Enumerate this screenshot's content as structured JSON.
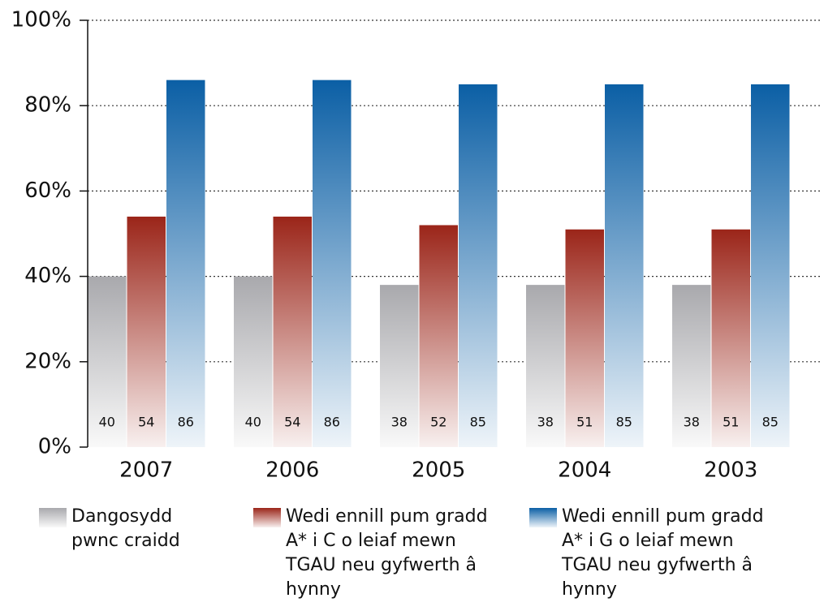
{
  "chart_data": {
    "type": "bar",
    "categories": [
      "2007",
      "2006",
      "2005",
      "2004",
      "2003"
    ],
    "series": [
      {
        "name": "Dangosydd pwnc craidd",
        "color": "#a9a9ad",
        "values": [
          40,
          40,
          38,
          38,
          38
        ]
      },
      {
        "name": "Wedi ennill pum gradd  A* i C o leiaf mewn TGAU neu gyfwerth â hynny",
        "color": "#9b2519",
        "values": [
          54,
          54,
          52,
          51,
          51
        ]
      },
      {
        "name": "Wedi ennill pum gradd  A* i G o leiaf mewn TGAU neu gyfwerth â hynny",
        "color": "#0b5fa5",
        "values": [
          86,
          86,
          85,
          85,
          85
        ]
      }
    ],
    "ylim": [
      0,
      100
    ],
    "yticks": [
      {
        "value": 0,
        "label": "0%"
      },
      {
        "value": 20,
        "label": "20%"
      },
      {
        "value": 40,
        "label": "40%"
      },
      {
        "value": 60,
        "label": "60%"
      },
      {
        "value": 80,
        "label": "80%"
      },
      {
        "value": 100,
        "label": "100%"
      }
    ],
    "grid": true
  }
}
